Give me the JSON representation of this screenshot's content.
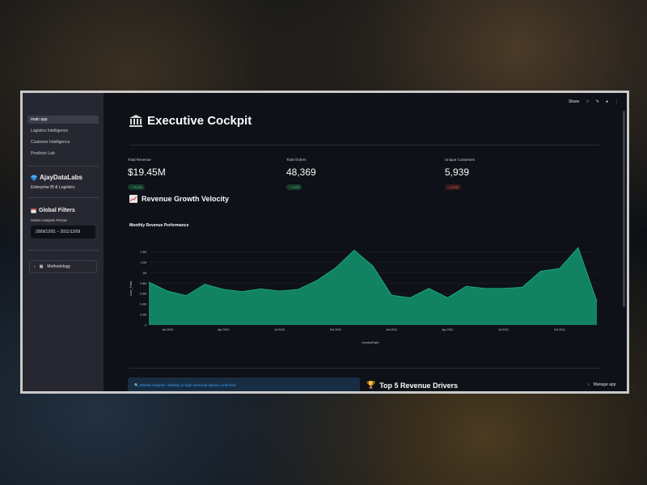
{
  "sidebar": {
    "nav": [
      "main app",
      "Logistics Intelligence",
      "Customer Intelligence",
      "Predictor Lab"
    ],
    "brand_title": "AjayDataLabs",
    "brand_subtitle": "Enterprise BI & Logistics",
    "filters_title": "Global Filters",
    "period_label": "Select Analysis Period",
    "period_value": "2009/12/01 – 2011/12/09",
    "methodology": "Methodology"
  },
  "topbar": {
    "share": "Share"
  },
  "page": {
    "title": "Executive Cockpit",
    "metrics": [
      {
        "label": "Total Revenue",
        "value": "$19.45M",
        "delta": "↑ +5.2%",
        "dir": "up"
      },
      {
        "label": "Total Orders",
        "value": "48,369",
        "delta": "↑ +12%",
        "dir": "up"
      },
      {
        "label": "Unique Customers",
        "value": "5,939",
        "delta": "↓ -2.1%",
        "dir": "down"
      }
    ],
    "section_title": "Revenue Growth Velocity",
    "chart_title": "Monthly Revenue Performance",
    "info_text": "Market Analysis: Stability in high seasonal spikes confirmed",
    "drivers_title": "Top 5 Revenue Drivers",
    "manage_app": "Manage app"
  },
  "chart_data": {
    "type": "area",
    "xlabel": "InvoiceDate",
    "ylabel": "Line_Total",
    "ylim": [
      0,
      1.5
    ],
    "yticks": [
      "0",
      "0.2M",
      "0.4M",
      "0.6M",
      "0.8M",
      "1M",
      "1.2M",
      "1.4M"
    ],
    "xticks": [
      "Jan 2010",
      "Apr 2010",
      "Jul 2010",
      "Oct 2010",
      "Jan 2011",
      "Apr 2011",
      "Jul 2011",
      "Oct 2011"
    ],
    "color": "#138a66",
    "series": [
      {
        "values": [
          0.82,
          0.65,
          0.56,
          0.78,
          0.68,
          0.64,
          0.69,
          0.65,
          0.68,
          0.85,
          1.09,
          1.43,
          1.13,
          0.57,
          0.52,
          0.7,
          0.52,
          0.74,
          0.7,
          0.7,
          0.72,
          1.03,
          1.08,
          1.48,
          0.45
        ]
      }
    ]
  },
  "colors": {
    "accent": "#138a66",
    "background": "#0e1117",
    "sidebar": "#262730"
  }
}
